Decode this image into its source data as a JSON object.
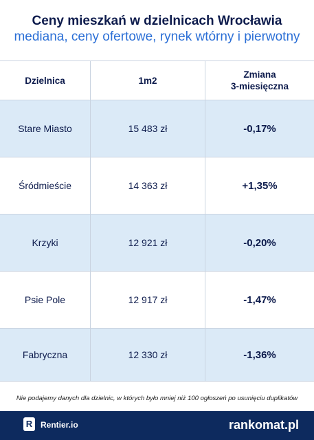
{
  "header": {
    "title": "Ceny mieszkań w dzielnicach Wrocławia",
    "subtitle": "mediana, ceny ofertowe, rynek wtórny i pierwotny"
  },
  "table": {
    "columns": [
      "Dzielnica",
      "1m2",
      "Zmiana\n3-miesięczna"
    ],
    "rows": [
      {
        "district": "Stare Miasto",
        "price": "15 483 zł",
        "change": "-0,17%"
      },
      {
        "district": "Śródmieście",
        "price": "14 363 zł",
        "change": "+1,35%"
      },
      {
        "district": "Krzyki",
        "price": "12 921 zł",
        "change": "-0,20%"
      },
      {
        "district": "Psie Pole",
        "price": "12 917 zł",
        "change": "-1,47%"
      },
      {
        "district": "Fabryczna",
        "price": "12 330 zł",
        "change": "-1,36%"
      }
    ]
  },
  "note": "Nie podajemy danych dla dzielnic, w których było mniej niż 100 ogłoszeń po usunięciu duplikatów",
  "footer": {
    "left_logo_letter": "R",
    "left_brand": "Rentier.io",
    "right_brand": "rankomat.pl"
  },
  "colors": {
    "navy": "#0d2a5e",
    "accent_blue": "#2b6fd6",
    "row_blue": "#dbeaf7"
  }
}
